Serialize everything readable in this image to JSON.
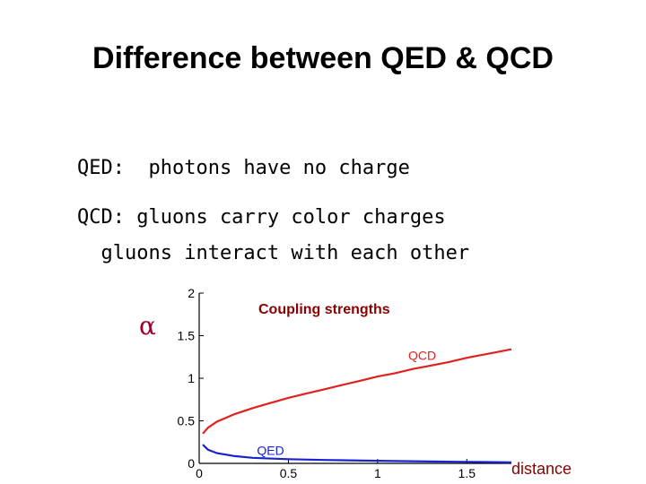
{
  "title": "Difference between QED & QCD",
  "lines": {
    "qed": "QED:  photons have no charge",
    "qcd1": "QCD: gluons carry color charges",
    "qcd2": "  gluons interact with each other"
  },
  "alpha_symbol": "α",
  "chart_data": {
    "type": "line",
    "title": "Coupling strengths",
    "xlabel": "distance",
    "ylabel": "α",
    "xlim": [
      0,
      1.75
    ],
    "ylim": [
      0,
      2
    ],
    "x_ticks": [
      "0",
      "0.5",
      "1",
      "1.5"
    ],
    "y_ticks": [
      "0",
      "0.5",
      "1",
      "1.5",
      "2"
    ],
    "series": [
      {
        "name": "QCD",
        "color": "#e0211e",
        "x": [
          0.02,
          0.05,
          0.1,
          0.2,
          0.3,
          0.4,
          0.5,
          0.6,
          0.7,
          0.8,
          0.9,
          1.0,
          1.1,
          1.2,
          1.3,
          1.4,
          1.5,
          1.6,
          1.75
        ],
        "y": [
          0.35,
          0.42,
          0.49,
          0.58,
          0.65,
          0.71,
          0.77,
          0.82,
          0.87,
          0.92,
          0.97,
          1.02,
          1.06,
          1.11,
          1.15,
          1.19,
          1.24,
          1.28,
          1.34
        ]
      },
      {
        "name": "QED",
        "color": "#1a22d0",
        "x": [
          0.02,
          0.05,
          0.1,
          0.2,
          0.3,
          0.5,
          0.7,
          1.0,
          1.3,
          1.6,
          1.75
        ],
        "y": [
          0.22,
          0.16,
          0.12,
          0.085,
          0.065,
          0.05,
          0.04,
          0.03,
          0.022,
          0.016,
          0.012
        ]
      }
    ]
  }
}
